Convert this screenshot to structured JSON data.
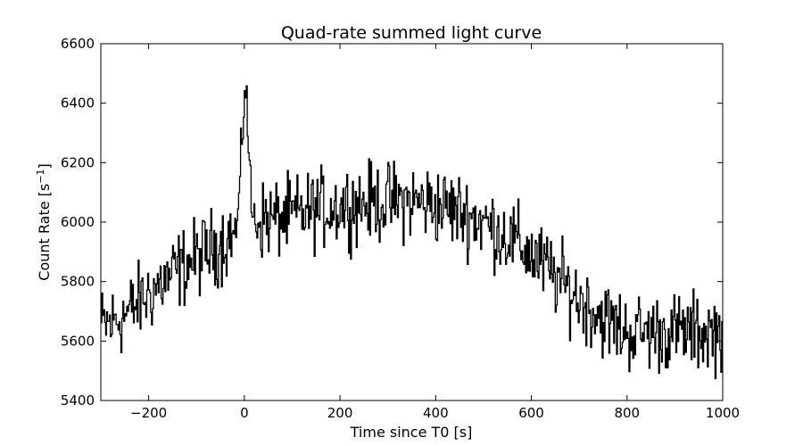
{
  "chart_data": {
    "type": "line",
    "title": "Quad-rate summed light curve",
    "xlabel": "Time since T0 [s]",
    "ylabel_main": "Count Rate [s",
    "ylabel_sup": "−1",
    "ylabel_end": "]",
    "xlim": [
      -300,
      1000
    ],
    "ylim": [
      5400,
      6600
    ],
    "xticks": [
      -200,
      0,
      200,
      400,
      600,
      800,
      1000
    ],
    "xtick_labels": [
      "−200",
      "0",
      "200",
      "400",
      "600",
      "800",
      "1000"
    ],
    "yticks": [
      5400,
      5600,
      5800,
      6000,
      6200,
      6400,
      6600
    ],
    "ytick_labels": [
      "5400",
      "5600",
      "5800",
      "6000",
      "6200",
      "6400",
      "6600"
    ],
    "grid": false,
    "line_color": "#000000",
    "step": 2,
    "series": [
      {
        "x_start": -300,
        "x_step": 20,
        "baseline_y": [
          5650,
          5660,
          5680,
          5700,
          5730,
          5760,
          5790,
          5810,
          5840,
          5860,
          5880,
          5900,
          5920,
          5940,
          5960,
          5975,
          6000,
          6010,
          6010,
          6015,
          6020,
          6030,
          6040,
          6045,
          6050,
          6055,
          6060,
          6062,
          6064,
          6066,
          6068,
          6070,
          6070,
          6068,
          6064,
          6058,
          6050,
          6040,
          6030,
          6015,
          6000,
          5980,
          5960,
          5940,
          5915,
          5890,
          5860,
          5830,
          5800,
          5770,
          5740,
          5715,
          5690,
          5665,
          5645,
          5630
        ],
        "noise_amplitude": 65,
        "flare": {
          "t": 0,
          "peak_y": 6475,
          "width": 12
        }
      }
    ]
  }
}
